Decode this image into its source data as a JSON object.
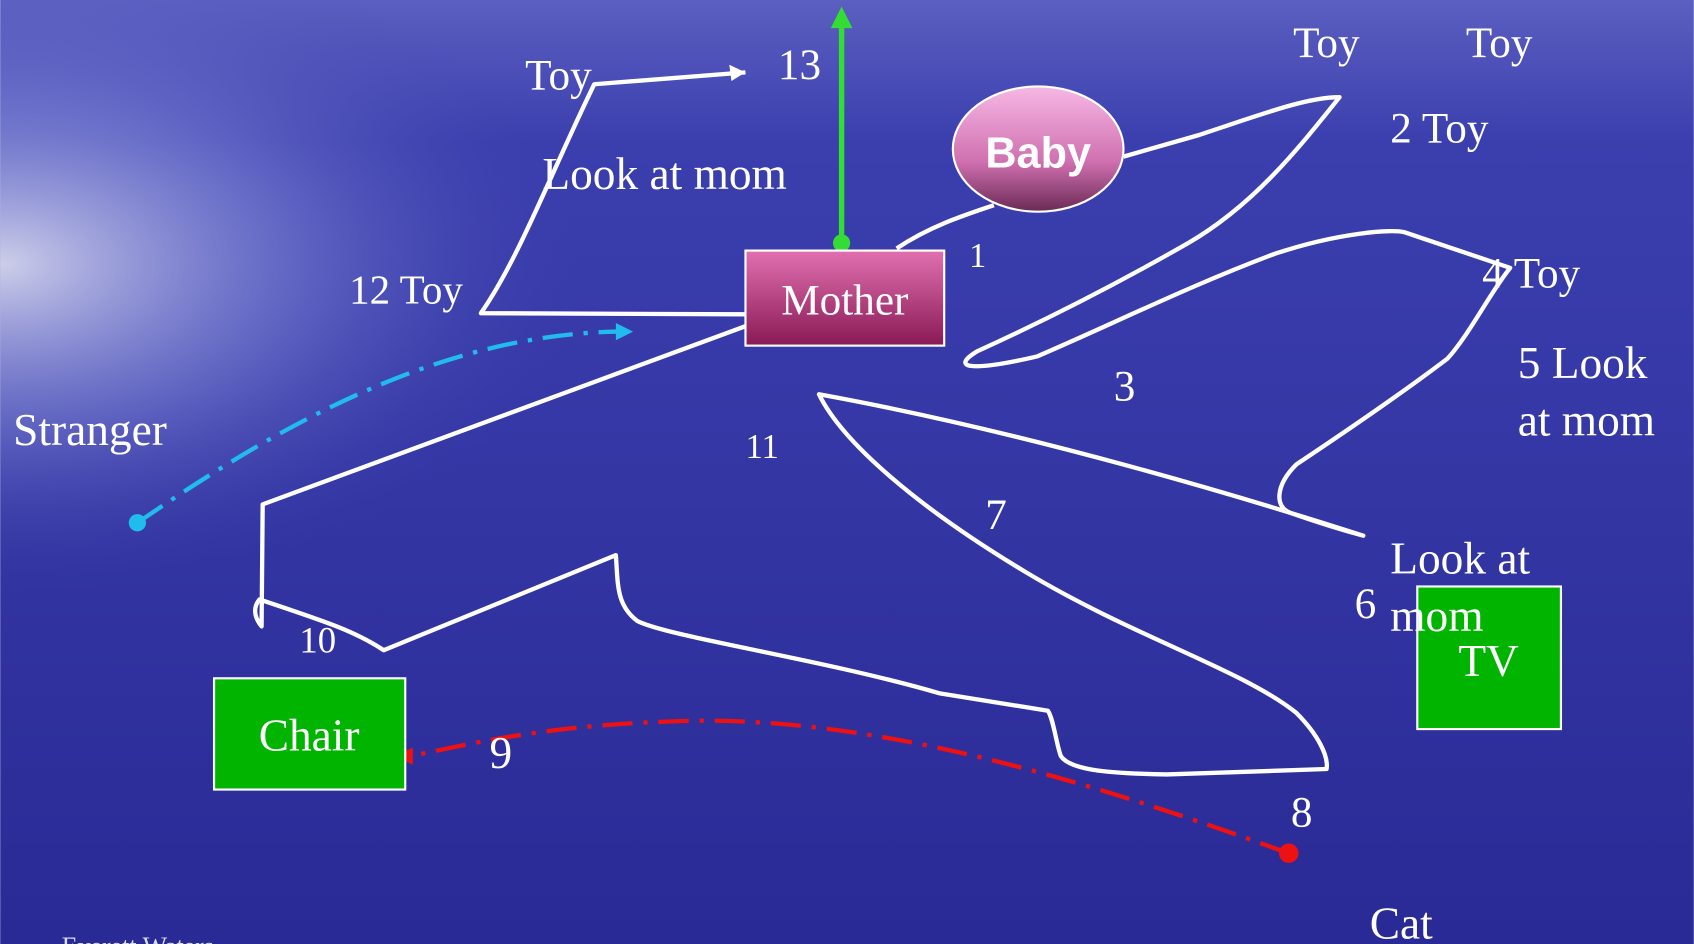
{
  "objects": {
    "mother": "Mother",
    "baby": "Baby",
    "chair": "Chair",
    "tv": "TV"
  },
  "labels": [
    "Toy",
    "13",
    "Toy",
    "Toy",
    "2 Toy",
    "Look at mom",
    "1",
    "12 Toy",
    "4 Toy",
    "5 Look",
    "at mom",
    "3",
    "Stranger",
    "11",
    "7",
    "Look at",
    "mom",
    "6",
    "10",
    "9",
    "8",
    "Cat"
  ],
  "footer": "Everett Waters"
}
